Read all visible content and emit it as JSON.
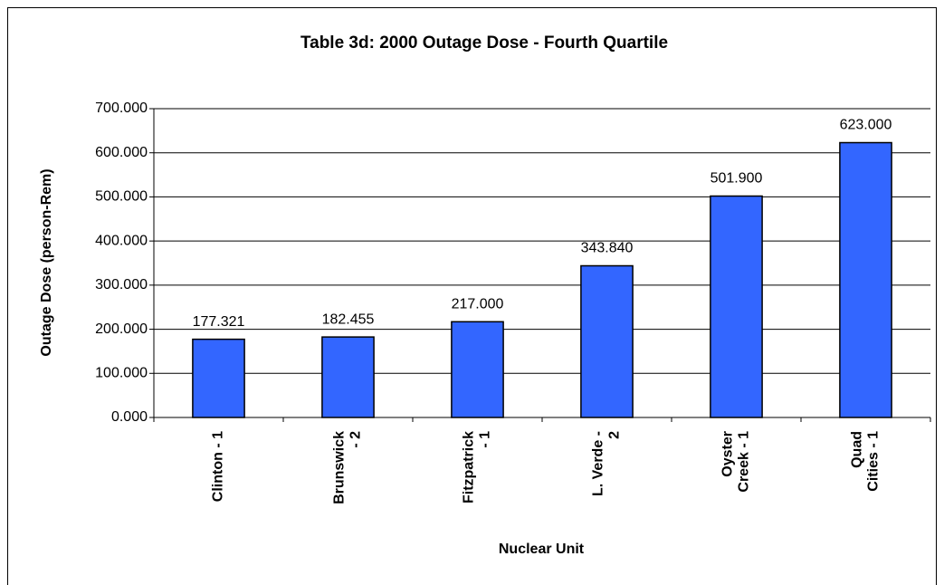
{
  "chart_data": {
    "type": "bar",
    "title": "Table 3d: 2000 Outage Dose - Fourth Quartile",
    "x_label": "Nuclear Unit",
    "y_label": "Outage Dose (person-Rem)",
    "categories": [
      "Clinton - 1",
      "Brunswick\n- 2",
      "Fitzpatrick\n- 1",
      "L. Verde -\n2",
      "Oyster\nCreek - 1",
      "Quad\nCities - 1"
    ],
    "values": [
      177.321,
      182.455,
      217.0,
      343.84,
      501.9,
      623.0
    ],
    "value_labels": [
      "177.321",
      "182.455",
      "217.000",
      "343.840",
      "501.900",
      "623.000"
    ],
    "color": "#3366ff",
    "ylim": [
      0,
      700
    ],
    "yticks": [
      {
        "value": 0,
        "label": "0.000"
      },
      {
        "value": 100,
        "label": "100.000"
      },
      {
        "value": 200,
        "label": "200.000"
      },
      {
        "value": 300,
        "label": "300.000"
      },
      {
        "value": 400,
        "label": "400.000"
      },
      {
        "value": 500,
        "label": "500.000"
      },
      {
        "value": 600,
        "label": "600.000"
      },
      {
        "value": 700,
        "label": "700.000"
      }
    ],
    "grid": true
  }
}
